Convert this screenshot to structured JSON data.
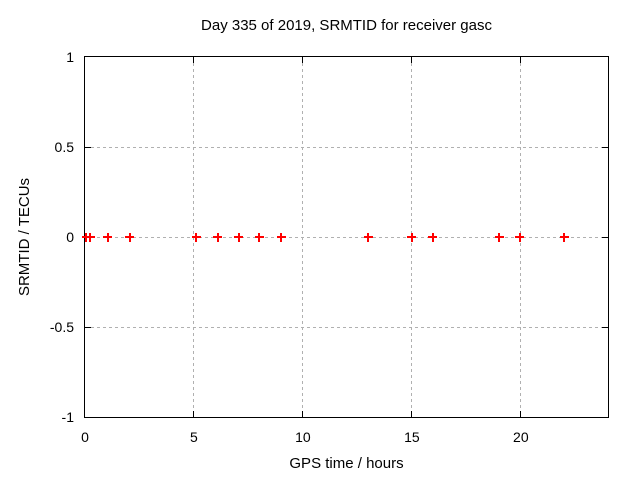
{
  "chart_data": {
    "type": "scatter",
    "title": "Day 335 of 2019, SRMTID for receiver gasc",
    "xlabel": "GPS time / hours",
    "ylabel": "SRMTID / TECUs",
    "xlim": [
      0,
      24
    ],
    "ylim": [
      -1,
      1
    ],
    "xticks": [
      {
        "v": 0,
        "label": "0"
      },
      {
        "v": 5,
        "label": "5"
      },
      {
        "v": 10,
        "label": "10"
      },
      {
        "v": 15,
        "label": "15"
      },
      {
        "v": 20,
        "label": "20"
      }
    ],
    "yticks": [
      {
        "v": 1,
        "label": "1"
      },
      {
        "v": 0.5,
        "label": "0.5"
      },
      {
        "v": 0,
        "label": "0"
      },
      {
        "v": -0.5,
        "label": "-0.5"
      },
      {
        "v": -1,
        "label": "-1"
      }
    ],
    "grid": true,
    "legend_position": "none",
    "marker": "plus",
    "colors": {
      "marker": "#ff0000",
      "grid": "#b0b0b0",
      "axis": "#000000",
      "background": "#ffffff",
      "text": "#000000"
    },
    "series": [
      {
        "name": "SRMTID",
        "x": [
          0.05,
          0.25,
          1.05,
          2.05,
          5.1,
          6.1,
          7.05,
          8.0,
          9.0,
          13.0,
          15.0,
          15.95,
          19.0,
          19.95,
          22.0
        ],
        "y": [
          0,
          0,
          0,
          0,
          0,
          0,
          0,
          0,
          0,
          0,
          0,
          0,
          0,
          0,
          0
        ]
      }
    ]
  }
}
